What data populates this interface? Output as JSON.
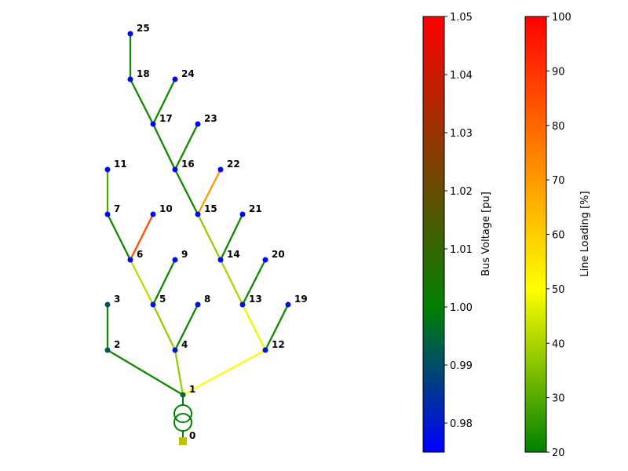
{
  "network": {
    "buses": [
      {
        "id": "0",
        "label": "0",
        "voltage": 1.0,
        "type": "ext_grid"
      },
      {
        "id": "1",
        "label": "1",
        "voltage": 0.995
      },
      {
        "id": "2",
        "label": "2",
        "voltage": 0.992
      },
      {
        "id": "3",
        "label": "3",
        "voltage": 0.991
      },
      {
        "id": "4",
        "label": "4",
        "voltage": 0.979
      },
      {
        "id": "5",
        "label": "5",
        "voltage": 0.978
      },
      {
        "id": "6",
        "label": "6",
        "voltage": 0.977
      },
      {
        "id": "7",
        "label": "7",
        "voltage": 0.976
      },
      {
        "id": "8",
        "label": "8",
        "voltage": 0.978
      },
      {
        "id": "9",
        "label": "9",
        "voltage": 0.977
      },
      {
        "id": "10",
        "label": "10",
        "voltage": 0.976
      },
      {
        "id": "11",
        "label": "11",
        "voltage": 0.976
      },
      {
        "id": "12",
        "label": "12",
        "voltage": 0.979
      },
      {
        "id": "13",
        "label": "13",
        "voltage": 0.978
      },
      {
        "id": "14",
        "label": "14",
        "voltage": 0.977
      },
      {
        "id": "15",
        "label": "15",
        "voltage": 0.976
      },
      {
        "id": "16",
        "label": "16",
        "voltage": 0.976
      },
      {
        "id": "17",
        "label": "17",
        "voltage": 0.976
      },
      {
        "id": "18",
        "label": "18",
        "voltage": 0.976
      },
      {
        "id": "19",
        "label": "19",
        "voltage": 0.978
      },
      {
        "id": "20",
        "label": "20",
        "voltage": 0.977
      },
      {
        "id": "21",
        "label": "21",
        "voltage": 0.976
      },
      {
        "id": "22",
        "label": "22",
        "voltage": 0.975
      },
      {
        "id": "23",
        "label": "23",
        "voltage": 0.976
      },
      {
        "id": "24",
        "label": "24",
        "voltage": 0.976
      },
      {
        "id": "25",
        "label": "25",
        "voltage": 0.976
      }
    ],
    "lines": [
      {
        "from": "1",
        "to": "2",
        "loading": 22
      },
      {
        "from": "2",
        "to": "3",
        "loading": 22
      },
      {
        "from": "1",
        "to": "4",
        "loading": 38
      },
      {
        "from": "4",
        "to": "5",
        "loading": 38
      },
      {
        "from": "5",
        "to": "6",
        "loading": 42
      },
      {
        "from": "6",
        "to": "7",
        "loading": 22
      },
      {
        "from": "7",
        "to": "11",
        "loading": 30
      },
      {
        "from": "6",
        "to": "10",
        "loading": 85
      },
      {
        "from": "4",
        "to": "8",
        "loading": 22
      },
      {
        "from": "5",
        "to": "9",
        "loading": 22
      },
      {
        "from": "1",
        "to": "12",
        "loading": 50
      },
      {
        "from": "12",
        "to": "13",
        "loading": 48
      },
      {
        "from": "13",
        "to": "14",
        "loading": 40
      },
      {
        "from": "14",
        "to": "15",
        "loading": 38
      },
      {
        "from": "15",
        "to": "16",
        "loading": 22
      },
      {
        "from": "16",
        "to": "17",
        "loading": 22
      },
      {
        "from": "17",
        "to": "18",
        "loading": 22
      },
      {
        "from": "18",
        "to": "25",
        "loading": 22
      },
      {
        "from": "12",
        "to": "19",
        "loading": 22
      },
      {
        "from": "13",
        "to": "20",
        "loading": 22
      },
      {
        "from": "14",
        "to": "21",
        "loading": 22
      },
      {
        "from": "15",
        "to": "22",
        "loading": 70
      },
      {
        "from": "16",
        "to": "23",
        "loading": 22
      },
      {
        "from": "17",
        "to": "24",
        "loading": 22
      }
    ],
    "transformer": {
      "from": "0",
      "to": "1",
      "color": "#008000"
    },
    "ext_grid_color": "#bfbf00"
  },
  "colorbars": {
    "voltage": {
      "title": "Bus Voltage [pu]",
      "min": 0.975,
      "max": 1.05,
      "ticks": [
        "0.98",
        "0.99",
        "1.00",
        "1.01",
        "1.02",
        "1.03",
        "1.04",
        "1.05"
      ],
      "colors": [
        "#0000ff",
        "#008000",
        "#ff0000"
      ]
    },
    "loading": {
      "title": "Line Loading [%]",
      "min": 20,
      "max": 100,
      "ticks": [
        "20",
        "30",
        "40",
        "50",
        "60",
        "70",
        "80",
        "90",
        "100"
      ],
      "colors": [
        "#008000",
        "#ffff00",
        "#ff0000"
      ]
    }
  }
}
